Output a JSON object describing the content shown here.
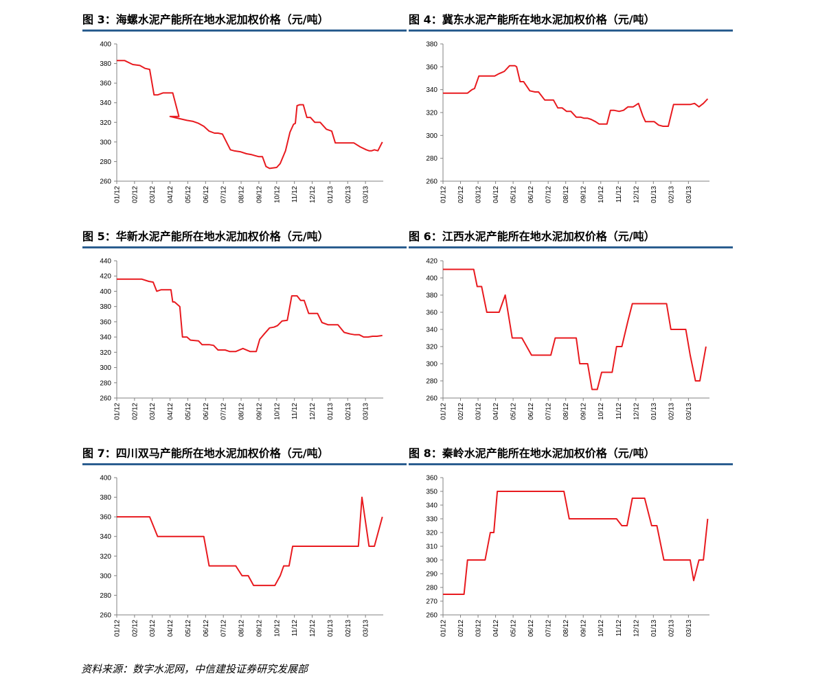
{
  "panels": [
    {
      "title_prefix": "图 3：",
      "title_text": "海螺水泥产能所在地水泥加权价格（元/吨）"
    },
    {
      "title_prefix": "图 4：",
      "title_text": "冀东水泥产能所在地水泥加权价格（元/吨）"
    },
    {
      "title_prefix": "图 5：",
      "title_text": "华新水泥产能所在地水泥加权价格（元/吨）"
    },
    {
      "title_prefix": "图 6：",
      "title_text": "江西水泥产能所在地水泥加权价格（元/吨）"
    },
    {
      "title_prefix": "图 7：",
      "title_text": "四川双马产能所在地水泥加权价格（元/吨）"
    },
    {
      "title_prefix": "图 8：",
      "title_text": "秦岭水泥产能所在地水泥加权价格（元/吨）"
    }
  ],
  "source_text": "资料来源：数字水泥网，中信建投证券研究发展部",
  "colors": {
    "line": "#e8191e",
    "axis": "#808080",
    "title_rule": "#2a5d8f"
  },
  "chart_data": [
    {
      "type": "line",
      "categories": [
        "01/12",
        "02/12",
        "03/12",
        "04/12",
        "05/12",
        "06/12",
        "07/12",
        "08/12",
        "09/12",
        "10/12",
        "11/12",
        "12/12",
        "01/13",
        "02/13",
        "03/13"
      ],
      "ylim": [
        260,
        400
      ],
      "yticks": [
        260,
        280,
        300,
        320,
        340,
        360,
        380,
        400
      ],
      "x_extent": [
        0,
        15
      ],
      "series": [
        {
          "x": [
            0,
            0.45,
            0.9,
            1.3,
            1.6,
            1.85,
            2.1,
            2.3,
            2.6,
            2.85,
            3,
            3.15,
            3.5,
            3,
            3.95,
            4.3,
            4.6,
            4.9,
            5.2,
            5.5,
            5.7,
            5.95,
            6.2,
            6.4,
            6.6,
            6.95,
            7.3,
            7.6,
            7.8,
            8,
            8.2,
            8.4,
            8.6,
            9,
            9.2,
            9.5,
            9.75,
            9.95,
            10.05,
            10.15,
            10.3,
            10.5,
            10.7,
            10.9,
            11.15,
            11.45,
            11.8,
            12.1,
            12.3,
            12.5,
            12.7,
            13,
            13.35,
            13.7,
            14.05,
            14.2,
            14.35,
            14.5,
            14.7,
            14.95
          ],
          "values": [
            383,
            383,
            379,
            378,
            375,
            374,
            348,
            348,
            350,
            350,
            350,
            350,
            326,
            326,
            322,
            321,
            319,
            316,
            311,
            309,
            309,
            308,
            299,
            292,
            291,
            290,
            288,
            287,
            286,
            285,
            285,
            275,
            273,
            274,
            278,
            291,
            310,
            318,
            319,
            337,
            338,
            338,
            325,
            325,
            320,
            320,
            313,
            311,
            299,
            299,
            299,
            299,
            299,
            295,
            292,
            291,
            291,
            292,
            291,
            300
          ]
        }
      ]
    },
    {
      "type": "line",
      "categories": [
        "01/12",
        "02/12",
        "03/12",
        "04/12",
        "05/12",
        "06/12",
        "07/12",
        "08/12",
        "09/12",
        "10/12",
        "11/12",
        "12/12",
        "01/13",
        "02/13",
        "03/13"
      ],
      "ylim": [
        260,
        380
      ],
      "yticks": [
        260,
        280,
        300,
        320,
        340,
        360,
        380
      ],
      "x_extent": [
        0,
        15.2
      ],
      "series": [
        {
          "x": [
            0,
            1.2,
            1.4,
            1.65,
            1.8,
            2.05,
            2.7,
            2.95,
            3.2,
            3.35,
            3.5,
            3.8,
            4.1,
            4.2,
            4.4,
            4.6,
            4.95,
            5.25,
            5.45,
            5.8,
            6.05,
            6.3,
            6.55,
            6.8,
            7.05,
            7.3,
            7.6,
            7.85,
            8.05,
            8.25,
            8.45,
            8.7,
            8.9,
            9.1,
            9.35,
            9.55,
            9.75,
            10.05,
            10.3,
            10.55,
            10.85,
            11.15,
            11.4,
            11.55,
            11.8,
            12.05,
            12.3,
            12.55,
            12.85,
            13.15,
            13.4,
            13.65,
            13.9,
            14.1,
            14.35,
            14.6,
            14.85,
            15.1
          ],
          "values": [
            337,
            337,
            337,
            340,
            341,
            352,
            352,
            352,
            354,
            355,
            356,
            361,
            361,
            360,
            347,
            347,
            339,
            338,
            338,
            331,
            331,
            331,
            324,
            324,
            321,
            321,
            316,
            316,
            315,
            315,
            314,
            312,
            310,
            310,
            310,
            322,
            322,
            321,
            322,
            325,
            325,
            328,
            317,
            312,
            312,
            312,
            309,
            308,
            308,
            327,
            327,
            327,
            327,
            327,
            328,
            325,
            328,
            332
          ]
        }
      ]
    },
    {
      "type": "line",
      "categories": [
        "01/12",
        "02/12",
        "03/12",
        "04/12",
        "05/12",
        "06/12",
        "07/12",
        "08/12",
        "09/12",
        "10/12",
        "11/12",
        "12/12",
        "01/13",
        "02/13",
        "03/13"
      ],
      "ylim": [
        260,
        440
      ],
      "yticks": [
        260,
        280,
        300,
        320,
        340,
        360,
        380,
        400,
        420,
        440
      ],
      "x_extent": [
        0,
        15
      ],
      "series": [
        {
          "x": [
            0,
            1.1,
            1.4,
            1.8,
            2.05,
            2.25,
            2.5,
            2.85,
            3.05,
            3.15,
            3.25,
            3.55,
            3.7,
            3.95,
            4.15,
            4.6,
            4.8,
            5.2,
            5.45,
            5.7,
            6.1,
            6.35,
            6.7,
            7.1,
            7.5,
            7.85,
            8.05,
            8.3,
            8.6,
            8.85,
            9.05,
            9.3,
            9.6,
            9.85,
            10.15,
            10.35,
            10.55,
            10.8,
            11.05,
            11.3,
            11.55,
            11.9,
            12.1,
            12.45,
            12.8,
            13.15,
            13.4,
            13.65,
            13.9,
            14.15,
            14.4,
            14.65,
            14.95
          ],
          "values": [
            416,
            416,
            416,
            413,
            412,
            400,
            402,
            402,
            402,
            386,
            386,
            380,
            340,
            340,
            336,
            335,
            330,
            330,
            329,
            323,
            323,
            321,
            321,
            325,
            321,
            321,
            337,
            344,
            352,
            353,
            355,
            361,
            362,
            394,
            394,
            388,
            388,
            371,
            371,
            371,
            359,
            356,
            356,
            356,
            346,
            344,
            343,
            343,
            340,
            340,
            341,
            341,
            342
          ]
        }
      ]
    },
    {
      "type": "line",
      "categories": [
        "01/12",
        "02/12",
        "03/12",
        "04/12",
        "05/12",
        "06/12",
        "07/12",
        "08/12",
        "09/12",
        "10/12",
        "11/12",
        "12/12",
        "01/13",
        "02/13",
        "03/13"
      ],
      "ylim": [
        260,
        420
      ],
      "yticks": [
        260,
        280,
        300,
        320,
        340,
        360,
        380,
        400,
        420
      ],
      "x_extent": [
        0,
        15.2
      ],
      "series": [
        {
          "x": [
            0,
            1.55,
            1.75,
            1.95,
            2.2,
            2.5,
            2.95,
            3.2,
            3.55,
            3.95,
            4.3,
            4.5,
            5.05,
            5.5,
            6.15,
            6.4,
            6.9,
            7.1,
            7.6,
            7.8,
            8.25,
            8.5,
            8.8,
            9.05,
            9.35,
            9.65,
            9.9,
            10.2,
            10.55,
            10.8,
            11.1,
            11.4,
            11.65,
            11.95,
            12.2,
            12.5,
            12.75,
            13.0,
            13.3,
            13.6,
            13.85,
            14.1,
            14.4,
            14.65,
            15.0
          ],
          "values": [
            410,
            410,
            410,
            390,
            390,
            360,
            360,
            360,
            380,
            330,
            330,
            330,
            310,
            310,
            310,
            330,
            330,
            330,
            330,
            300,
            300,
            270,
            270,
            290,
            290,
            290,
            320,
            320,
            350,
            370,
            370,
            370,
            370,
            370,
            370,
            370,
            370,
            340,
            340,
            340,
            340,
            310,
            280,
            280,
            320
          ]
        }
      ]
    },
    {
      "type": "line",
      "categories": [
        "01/12",
        "02/12",
        "03/12",
        "04/12",
        "05/12",
        "06/12",
        "07/12",
        "08/12",
        "09/12",
        "10/12",
        "11/12",
        "12/12",
        "01/13",
        "02/13",
        "03/13"
      ],
      "ylim": [
        260,
        400
      ],
      "yticks": [
        260,
        280,
        300,
        320,
        340,
        360,
        380,
        400
      ],
      "x_extent": [
        0,
        15
      ],
      "series": [
        {
          "x": [
            0,
            1.2,
            1.6,
            1.85,
            2.3,
            2.8,
            3.3,
            3.85,
            4.3,
            4.6,
            4.9,
            5.2,
            5.5,
            5.8,
            6.05,
            6.35,
            6.7,
            7.05,
            7.4,
            7.7,
            8.05,
            8.35,
            8.6,
            8.9,
            9.2,
            9.4,
            9.7,
            9.9,
            10.2,
            10.6,
            11.0,
            11.4,
            11.8,
            12.2,
            12.6,
            13.0,
            13.4,
            13.6,
            13.8,
            14.2,
            14.5,
            14.95
          ],
          "values": [
            360,
            360,
            360,
            360,
            340,
            340,
            340,
            340,
            340,
            340,
            340,
            310,
            310,
            310,
            310,
            310,
            310,
            300,
            300,
            290,
            290,
            290,
            290,
            290,
            300,
            310,
            310,
            330,
            330,
            330,
            330,
            330,
            330,
            330,
            330,
            330,
            330,
            330,
            380,
            330,
            330,
            360
          ]
        }
      ]
    },
    {
      "type": "line",
      "categories": [
        "01/12",
        "02/12",
        "03/12",
        "04/12",
        "05/12",
        "06/12",
        "07/12",
        "08/12",
        "09/12",
        "10/12",
        "11/12",
        "12/12",
        "01/13",
        "02/13",
        "03/13"
      ],
      "ylim": [
        260,
        360
      ],
      "yticks": [
        260,
        270,
        280,
        290,
        300,
        310,
        320,
        330,
        340,
        350,
        360
      ],
      "x_extent": [
        0,
        15.2
      ],
      "series": [
        {
          "x": [
            0,
            0.8,
            1.2,
            1.4,
            1.8,
            2.4,
            2.7,
            2.9,
            3.1,
            3.4,
            3.9,
            4.5,
            5.1,
            5.7,
            6.4,
            6.9,
            7.2,
            7.6,
            8.1,
            8.6,
            9.2,
            9.6,
            9.9,
            10.2,
            10.5,
            10.8,
            11.2,
            11.5,
            11.9,
            12.2,
            12.6,
            13.0,
            13.5,
            13.9,
            14.1,
            14.3,
            14.6,
            14.85,
            15.1
          ],
          "values": [
            275,
            275,
            275,
            300,
            300,
            300,
            320,
            320,
            350,
            350,
            350,
            350,
            350,
            350,
            350,
            350,
            330,
            330,
            330,
            330,
            330,
            330,
            330,
            325,
            325,
            345,
            345,
            345,
            325,
            325,
            300,
            300,
            300,
            300,
            300,
            285,
            300,
            300,
            330
          ]
        }
      ]
    }
  ]
}
